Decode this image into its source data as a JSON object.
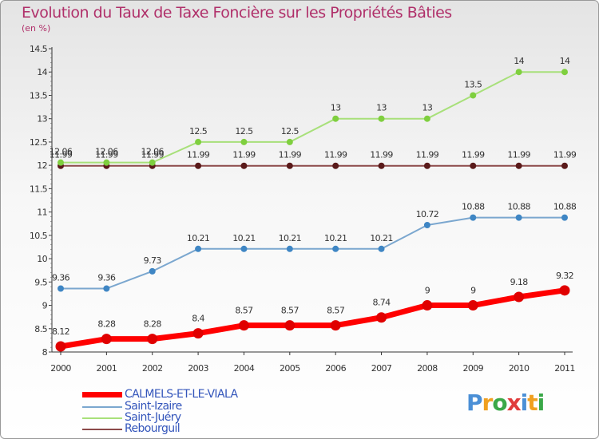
{
  "title": "Evolution du Taux de Taxe Foncière sur les Propriétés Bâties",
  "unit": "(en %)",
  "brand": "Proxiti",
  "chart_data": {
    "type": "line",
    "x": [
      "2000",
      "2001",
      "2002",
      "2003",
      "2004",
      "2005",
      "2006",
      "2007",
      "2008",
      "2009",
      "2010",
      "2011"
    ],
    "ylim": [
      8,
      14.5
    ],
    "yticks": [
      "8",
      "8.5",
      "9",
      "9.5",
      "10",
      "10.5",
      "11",
      "11.5",
      "12",
      "12.5",
      "13",
      "13.5",
      "14",
      "14.5"
    ],
    "grid": false,
    "legend_position": "bottom",
    "series": [
      {
        "name": "CALMELS-ET-LE-VIALA",
        "color": "#ff0000",
        "marker": "#e00000",
        "width": 7,
        "radius": 6,
        "values": [
          8.12,
          8.28,
          8.28,
          8.4,
          8.57,
          8.57,
          8.57,
          8.74,
          9,
          9,
          9.18,
          9.32
        ],
        "labels": [
          "8.12",
          "8.28",
          "8.28",
          "8.4",
          "8.57",
          "8.57",
          "8.57",
          "8.74",
          "9",
          "9",
          "9.18",
          "9.32"
        ]
      },
      {
        "name": "Saint-Izaire",
        "color": "#7ba7cf",
        "marker": "#3f86c4",
        "width": 2,
        "radius": 3.5,
        "values": [
          9.36,
          9.36,
          9.73,
          10.21,
          10.21,
          10.21,
          10.21,
          10.21,
          10.72,
          10.88,
          10.88,
          10.88
        ],
        "labels": [
          "9.36",
          "9.36",
          "9.73",
          "10.21",
          "10.21",
          "10.21",
          "10.21",
          "10.21",
          "10.72",
          "10.88",
          "10.88",
          "10.88"
        ]
      },
      {
        "name": "Saint-Juéry",
        "color": "#a8e07a",
        "marker": "#7fcf3f",
        "width": 2,
        "radius": 3.5,
        "values": [
          12.06,
          12.06,
          12.06,
          12.5,
          12.5,
          12.5,
          13,
          13,
          13,
          13.5,
          14,
          14
        ],
        "labels": [
          "12.06",
          "12.06",
          "12.06",
          "12.5",
          "12.5",
          "12.5",
          "13",
          "13",
          "13",
          "13.5",
          "14",
          "14"
        ]
      },
      {
        "name": "Rebourguil",
        "color": "#8c4a4a",
        "marker": "#5a1a1a",
        "width": 2,
        "radius": 3.5,
        "values": [
          11.99,
          11.99,
          11.99,
          11.99,
          11.99,
          11.99,
          11.99,
          11.99,
          11.99,
          11.99,
          11.99,
          11.99
        ],
        "labels": [
          "11.99",
          "11.99",
          "11.99",
          "11.99",
          "11.99",
          "11.99",
          "11.99",
          "11.99",
          "11.99",
          "11.99",
          "11.99",
          "11.99"
        ]
      }
    ]
  }
}
